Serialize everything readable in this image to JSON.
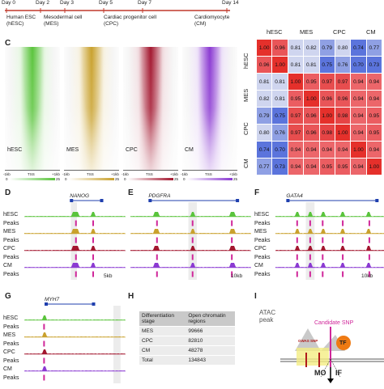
{
  "timeline": {
    "days": [
      "Day 0",
      "Day 2",
      "Day 3",
      "Day 5",
      "Day 7",
      "Day 14"
    ],
    "stages": [
      "Human ESC\n(hESC)",
      "Mesodermal cell\n(MES)",
      "Cardiac progenitor cell\n(CPC)",
      "Cardiomyocyte\n(CM)"
    ]
  },
  "panels": {
    "C": "C",
    "D": "D",
    "E": "E",
    "F": "F",
    "G": "G",
    "H": "H",
    "I": "I"
  },
  "heatmaps": [
    {
      "label": "hESC",
      "color": "#5ac43c",
      "axis": [
        "-1kb",
        "TSS",
        "+1kb"
      ],
      "scale": [
        "0",
        "25"
      ]
    },
    {
      "label": "MES",
      "color": "#c9a12d",
      "axis": [
        "-1kb",
        "TSS",
        "+1kb"
      ],
      "scale": [
        "0",
        "25"
      ]
    },
    {
      "label": "CPC",
      "color": "#a3172f",
      "axis": [
        "-1kb",
        "TSS",
        "+1kb"
      ],
      "scale": [
        "0",
        "25"
      ]
    },
    {
      "label": "CM",
      "color": "#8b3ad2",
      "axis": [
        "-1kb",
        "TSS",
        "+1kb"
      ],
      "scale": [
        "0",
        "25"
      ]
    }
  ],
  "correlation": {
    "col_labels": [
      "hESC",
      "MES",
      "CPC",
      "CM"
    ],
    "row_labels": [
      "hESC",
      "MES",
      "CPC",
      "CM"
    ],
    "values": [
      [
        "1.00",
        "0.96",
        "0.81",
        "0.82",
        "0.79",
        "0.80",
        "0.74",
        "0.77"
      ],
      [
        "0.96",
        "1.00",
        "0.81",
        "0.81",
        "0.75",
        "0.76",
        "0.70",
        "0.73"
      ],
      [
        "0.81",
        "0.81",
        "1.00",
        "0.95",
        "0.97",
        "0.97",
        "0.94",
        "0.94"
      ],
      [
        "0.82",
        "0.81",
        "0.95",
        "1.00",
        "0.96",
        "0.96",
        "0.94",
        "0.94"
      ],
      [
        "0.79",
        "0.75",
        "0.97",
        "0.96",
        "1.00",
        "0.98",
        "0.94",
        "0.95"
      ],
      [
        "0.80",
        "0.76",
        "0.97",
        "0.96",
        "0.98",
        "1.00",
        "0.94",
        "0.95"
      ],
      [
        "0.74",
        "0.70",
        "0.94",
        "0.94",
        "0.94",
        "0.94",
        "1.00",
        "0.94"
      ],
      [
        "0.77",
        "0.73",
        "0.94",
        "0.94",
        "0.95",
        "0.95",
        "0.94",
        "1.00"
      ]
    ]
  },
  "tracks": {
    "D": {
      "gene": "NANOG",
      "scale": "5kb"
    },
    "E": {
      "gene": "PDGFRA",
      "scale": "10kb"
    },
    "F": {
      "gene": "GATA4",
      "scale": "10kb"
    },
    "G": {
      "gene": "MYH7"
    },
    "rows": [
      "hESC",
      "Peaks",
      "MES",
      "Peaks",
      "CPC",
      "Peaks",
      "CM",
      "Peaks"
    ],
    "colors": {
      "hESC": "#5ac43c",
      "MES": "#c9a12d",
      "CPC": "#a3172f",
      "CM": "#8b3ad2",
      "peak": "#d0279a"
    }
  },
  "table_h": {
    "header": [
      "Differentiation stage",
      "Open chromatin regions"
    ],
    "rows": [
      [
        "MES",
        "99666"
      ],
      [
        "CPC",
        "82810"
      ],
      [
        "CM",
        "48278"
      ],
      [
        "Total",
        "134843"
      ]
    ]
  },
  "panel_i": {
    "atac": "ATAC\npeak",
    "candidate": "Candidate SNP",
    "gwas": "GWAS SNP",
    "tf": "TF",
    "mo": "MO",
    "if": "IF"
  }
}
